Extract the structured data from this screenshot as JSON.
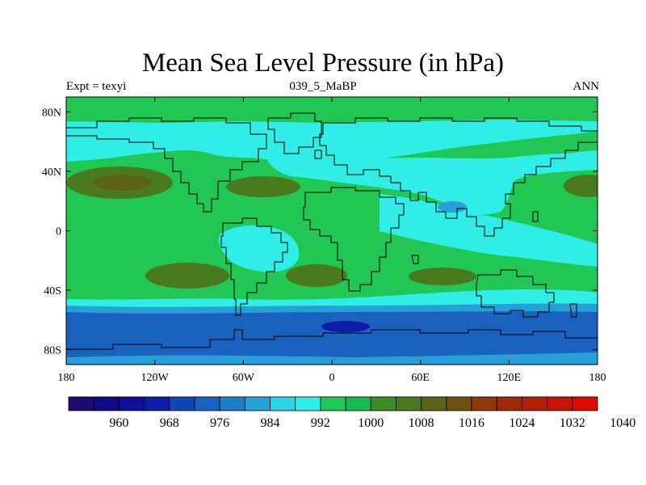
{
  "title": "Mean Sea Level Pressure (in hPa)",
  "subtitle_left": "Expt = texyi",
  "subtitle_center": "039_5_MaBP",
  "subtitle_right": "ANN",
  "axes": {
    "x_ticks": [
      {
        "value": -180,
        "label": "180"
      },
      {
        "value": -120,
        "label": "120W"
      },
      {
        "value": -60,
        "label": "60W"
      },
      {
        "value": 0,
        "label": "0"
      },
      {
        "value": 60,
        "label": "60E"
      },
      {
        "value": 120,
        "label": "120E"
      },
      {
        "value": 180,
        "label": "180"
      }
    ],
    "y_ticks": [
      {
        "value": 80,
        "label": "80N"
      },
      {
        "value": 40,
        "label": "40N"
      },
      {
        "value": 0,
        "label": "0"
      },
      {
        "value": -40,
        "label": "40S"
      },
      {
        "value": -80,
        "label": "80S"
      }
    ]
  },
  "colorbar": {
    "colors": [
      "#1e0b6e",
      "#100a82",
      "#0e0e96",
      "#0d1da5",
      "#1346b4",
      "#1b61be",
      "#1f7dc8",
      "#26a0d6",
      "#2ed2e4",
      "#30eee6",
      "#22c655",
      "#18b84e",
      "#3f8b27",
      "#4a7a20",
      "#5a6419",
      "#6e5014",
      "#8a3a0e",
      "#9c2a0a",
      "#b0200a",
      "#c41507",
      "#dc0a05"
    ],
    "labels": [
      "960",
      "968",
      "976",
      "984",
      "992",
      "1000",
      "1008",
      "1016",
      "1024",
      "1032",
      "1040"
    ]
  },
  "legend_colors": {
    "green_1000_1008": "#22c655",
    "cyan_992_1000": "#30eee6",
    "light_blue_984_992": "#26a0d6",
    "blue_976_984": "#1b61be",
    "dark_blue_968_976": "#0d1da5",
    "olive_1016_1024": "#4a7a20",
    "brown_1024_1032": "#6e5014"
  }
}
